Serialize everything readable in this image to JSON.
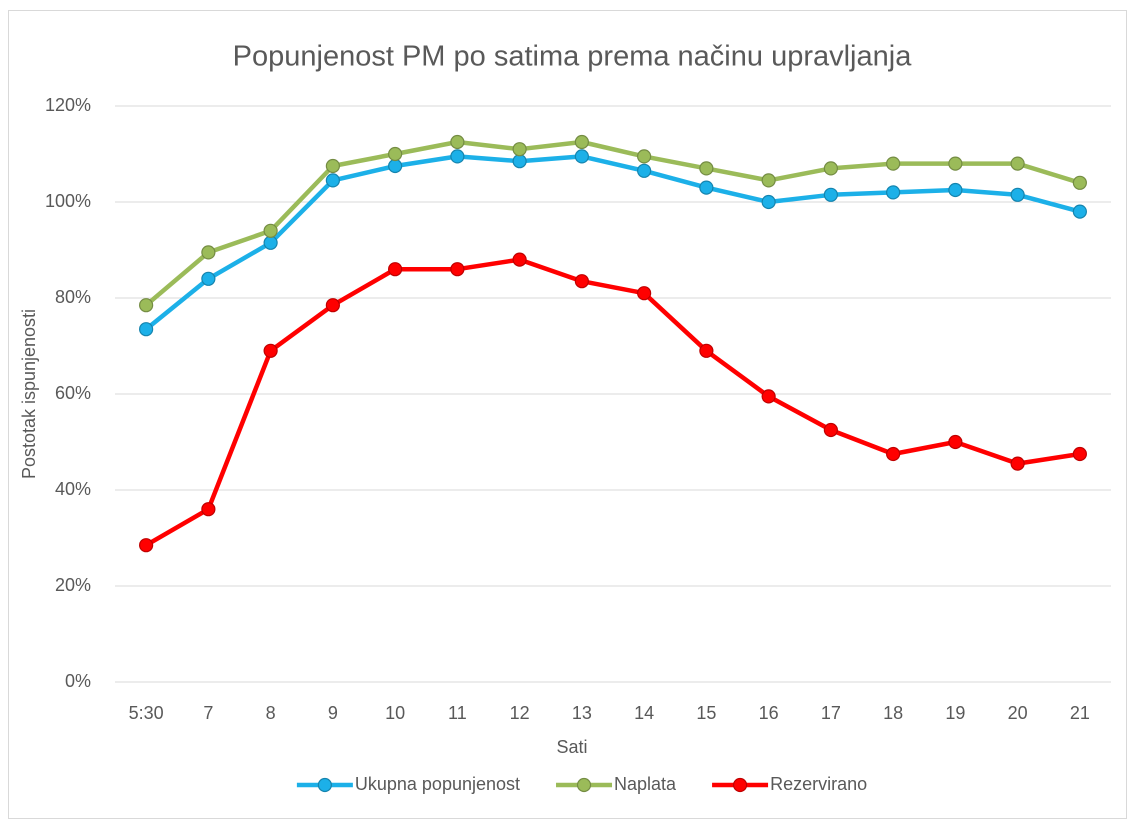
{
  "chart_data": {
    "type": "line",
    "title": "Popunjenost PM po satima prema načinu upravljanja",
    "x_label": "Sati",
    "y_label": "Postotak ispunjenosti",
    "categories": [
      "5:30",
      "7",
      "8",
      "9",
      "10",
      "11",
      "12",
      "13",
      "14",
      "15",
      "16",
      "17",
      "18",
      "19",
      "20",
      "21"
    ],
    "series": [
      {
        "name": "Ukupna popunjenost",
        "color": "#1cb0e8",
        "values": [
          73.5,
          84,
          91.5,
          104.5,
          107.5,
          109.5,
          108.5,
          109.5,
          106.5,
          103,
          100,
          101.5,
          102,
          102.5,
          101.5,
          98
        ]
      },
      {
        "name": "Naplata",
        "color": "#9bbb59",
        "values": [
          78.5,
          89.5,
          94,
          107.5,
          110,
          112.5,
          111,
          112.5,
          109.5,
          107,
          104.5,
          107,
          108,
          108,
          108,
          104
        ]
      },
      {
        "name": "Rezervirano",
        "color": "#ff0000",
        "values": [
          28.5,
          36,
          69,
          78.5,
          86,
          86,
          88,
          83.5,
          81,
          69,
          59.5,
          52.5,
          47.5,
          50,
          45.5,
          47.5
        ]
      }
    ],
    "ylim": [
      0,
      120
    ],
    "yticks": [
      {
        "value": 0,
        "label": "0%"
      },
      {
        "value": 20,
        "label": "20%"
      },
      {
        "value": 40,
        "label": "40%"
      },
      {
        "value": 60,
        "label": "60%"
      },
      {
        "value": 80,
        "label": "80%"
      },
      {
        "value": 100,
        "label": "100%"
      },
      {
        "value": 120,
        "label": "120%"
      }
    ],
    "grid": true,
    "legend": "bottom"
  }
}
